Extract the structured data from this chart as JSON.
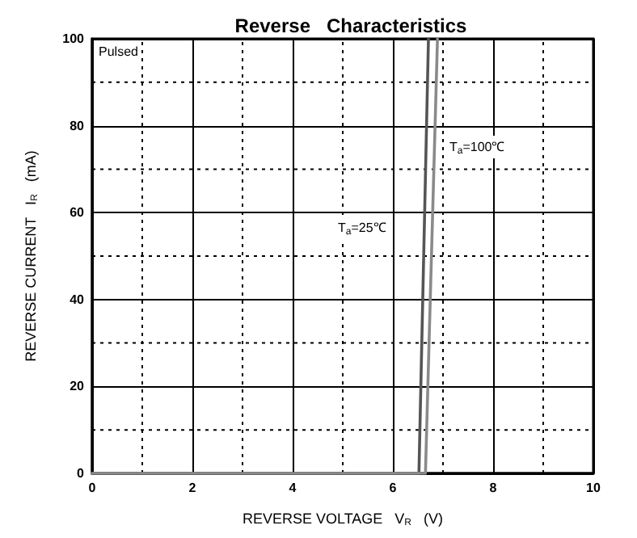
{
  "chart_data": {
    "type": "line",
    "title": "Reverse   Characteristics",
    "xlabel": "REVERSE VOLTAGE   V$_{R}$   (V)",
    "ylabel": "REVERSE CURRENT   I$_{R}$   (mA)",
    "series": [
      {
        "color": "#555555",
        "x": [
          0,
          6.52,
          6.71
        ],
        "values": [
          0,
          0,
          100
        ]
      },
      {
        "color": "#8a8a8a",
        "x": [
          0,
          6.65,
          6.89
        ],
        "values": [
          0,
          0,
          100
        ]
      }
    ],
    "annotations": [
      "Pulsed",
      "T$_{a}$=25℃",
      "T$_{a}$=100℃"
    ],
    "xlim": [
      0,
      10
    ],
    "xticks": [
      0,
      2,
      4,
      6,
      8,
      10
    ],
    "ylim": [
      0,
      100
    ],
    "yticks": [
      0,
      20,
      40,
      60,
      80,
      100
    ],
    "grid": true,
    "marker": "none",
    "line_style": "solid"
  }
}
